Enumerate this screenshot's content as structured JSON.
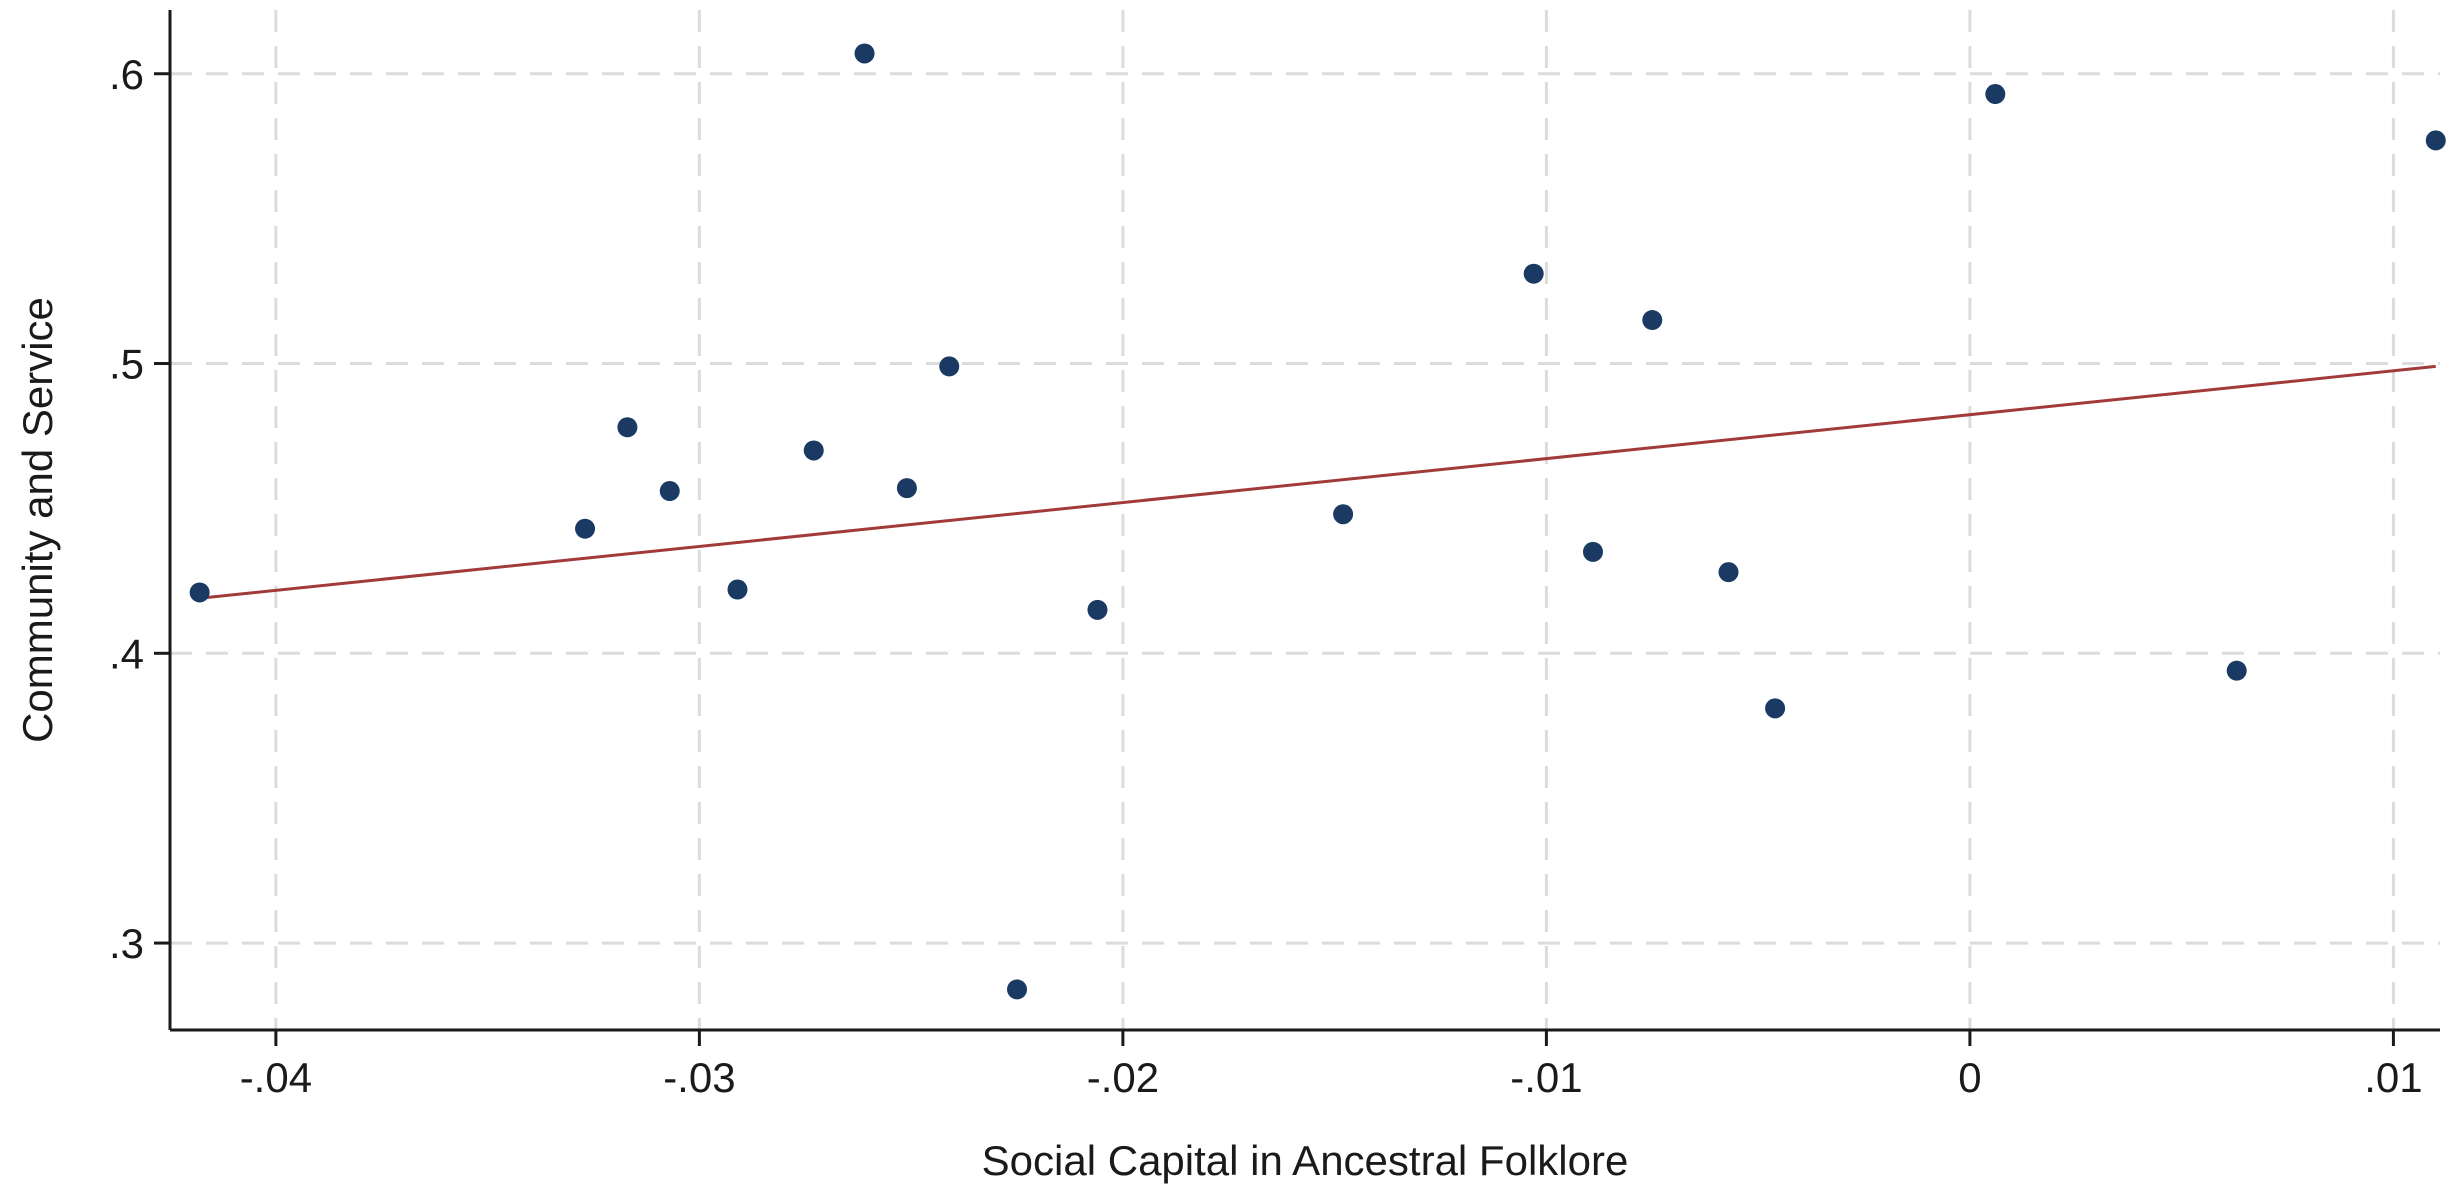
{
  "chart_data": {
    "type": "scatter",
    "title": "",
    "xlabel": "Social Capital in Ancestral Folklore",
    "ylabel": "Community and Service",
    "xlim": [
      -0.0425,
      0.0111
    ],
    "ylim": [
      0.27,
      0.622
    ],
    "x_ticks": [
      -0.04,
      -0.03,
      -0.02,
      -0.01,
      0,
      0.01
    ],
    "x_tick_labels": [
      "-.04",
      "-.03",
      "-.02",
      "-.01",
      "0",
      ".01"
    ],
    "y_ticks": [
      0.3,
      0.4,
      0.5,
      0.6
    ],
    "y_tick_labels": [
      ".3",
      ".4",
      ".5",
      ".6"
    ],
    "grid": true,
    "legend": "none",
    "marker_color": "#1a3a63",
    "fit_line_color": "#a33a3a",
    "grid_color": "#dcdcdc",
    "points": [
      {
        "x": -0.0418,
        "y": 0.421
      },
      {
        "x": -0.0327,
        "y": 0.443
      },
      {
        "x": -0.0317,
        "y": 0.478
      },
      {
        "x": -0.0307,
        "y": 0.456
      },
      {
        "x": -0.0291,
        "y": 0.422
      },
      {
        "x": -0.0273,
        "y": 0.47
      },
      {
        "x": -0.0261,
        "y": 0.607
      },
      {
        "x": -0.0251,
        "y": 0.457
      },
      {
        "x": -0.0241,
        "y": 0.499
      },
      {
        "x": -0.0225,
        "y": 0.284
      },
      {
        "x": -0.0206,
        "y": 0.415
      },
      {
        "x": -0.0148,
        "y": 0.448
      },
      {
        "x": -0.0103,
        "y": 0.531
      },
      {
        "x": -0.0089,
        "y": 0.435
      },
      {
        "x": -0.0075,
        "y": 0.515
      },
      {
        "x": -0.0057,
        "y": 0.428
      },
      {
        "x": -0.0046,
        "y": 0.381
      },
      {
        "x": 0.0006,
        "y": 0.593
      },
      {
        "x": 0.0063,
        "y": 0.394
      },
      {
        "x": 0.011,
        "y": 0.577
      }
    ],
    "fit_line": {
      "x": [
        -0.0418,
        0.011
      ],
      "y": [
        0.419,
        0.499
      ]
    }
  }
}
